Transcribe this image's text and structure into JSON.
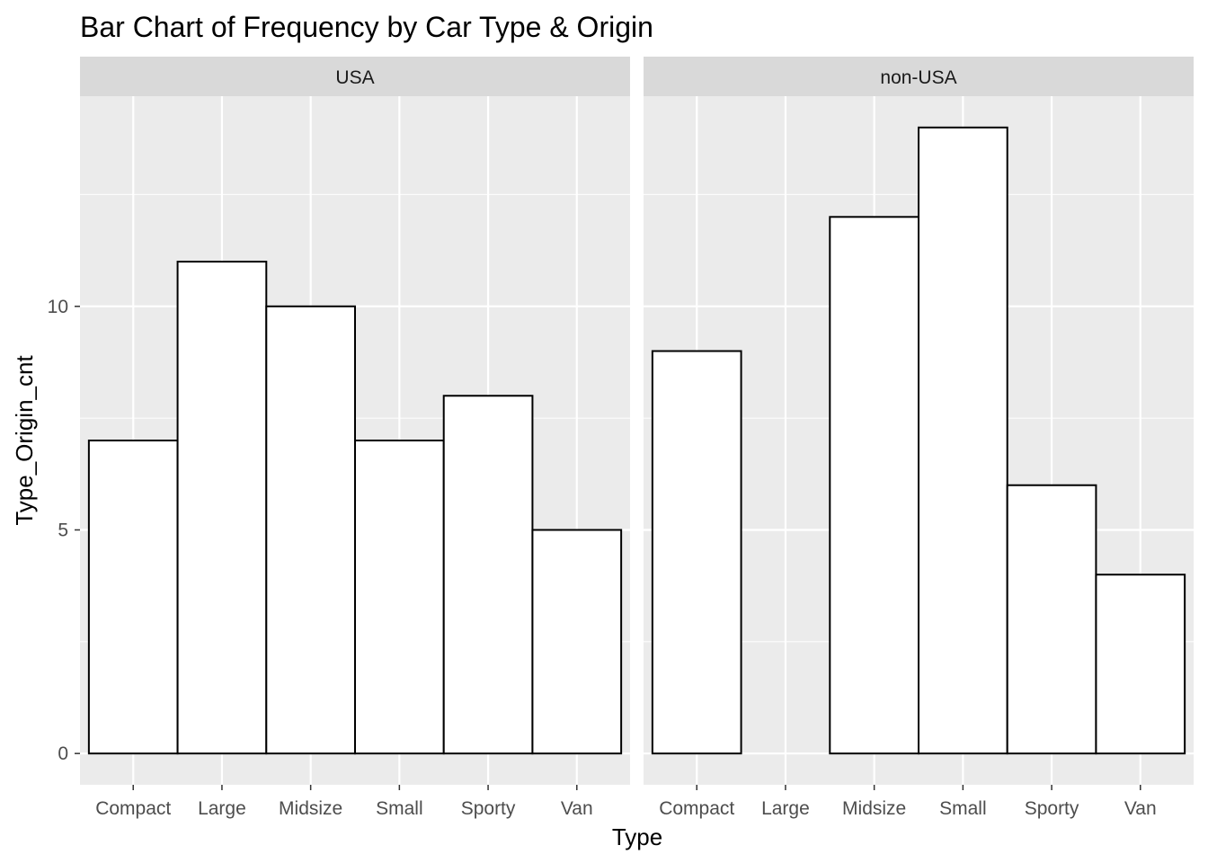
{
  "chart_data": {
    "type": "bar",
    "title": "Bar Chart of Frequency by Car Type & Origin",
    "xlabel": "Type",
    "ylabel": "Type_Origin_cnt",
    "categories": [
      "Compact",
      "Large",
      "Midsize",
      "Small",
      "Sporty",
      "Van"
    ],
    "ylim": [
      -0.7,
      14.7
    ],
    "yticks": [
      0,
      5,
      10
    ],
    "grid": true,
    "legend": "none",
    "colors": {
      "panel_bg": "#ebebeb",
      "strip_bg": "#d9d9d9",
      "grid": "#ffffff",
      "bar_fill": "#ffffff",
      "bar_outline": "#000000"
    },
    "panels": [
      {
        "name": "USA",
        "values": [
          7,
          11,
          10,
          7,
          8,
          5
        ]
      },
      {
        "name": "non-USA",
        "values": [
          9,
          0,
          12,
          14,
          6,
          4
        ]
      }
    ]
  }
}
